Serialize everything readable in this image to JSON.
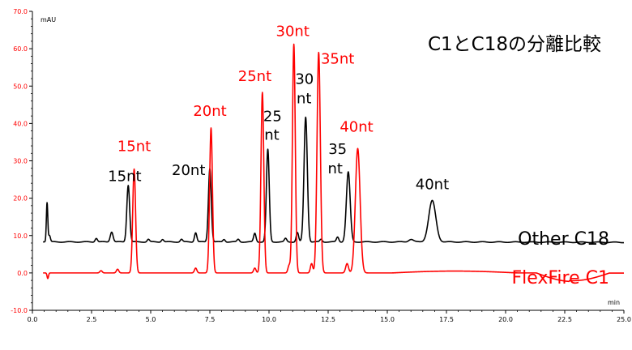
{
  "chart_data": {
    "type": "line",
    "title": "C1とC18の分離比較",
    "xlabel": "min",
    "ylabel": "mAU",
    "xlim": [
      0,
      25
    ],
    "ylim": [
      -10,
      70
    ],
    "grid": false,
    "xticks": [
      "0.0",
      "2.5",
      "5.0",
      "7.5",
      "10.0",
      "12.5",
      "15.0",
      "17.5",
      "20.0",
      "22.5",
      "25.0"
    ],
    "xtick_values": [
      0,
      2.5,
      5,
      7.5,
      10,
      12.5,
      15,
      17.5,
      20,
      22.5,
      25
    ],
    "yticks": [
      "-10.0",
      "0.0",
      "10.0",
      "20.0",
      "30.0",
      "40.0",
      "50.0",
      "60.0",
      "70.0"
    ],
    "ytick_values": [
      -10,
      0,
      10,
      20,
      30,
      40,
      50,
      60,
      70
    ],
    "series": [
      {
        "name": "Other C18",
        "color": "#000000",
        "baseline": 8.3,
        "peaks": [
          {
            "x": 0.62,
            "y": 18.8,
            "w": 0.03
          },
          {
            "x": 0.72,
            "y": 10.0,
            "w": 0.04
          },
          {
            "x": 2.7,
            "y": 9.3,
            "w": 0.05
          },
          {
            "x": 3.35,
            "y": 11.0,
            "w": 0.06
          },
          {
            "x": 4.05,
            "y": 23.5,
            "w": 0.06
          },
          {
            "x": 4.9,
            "y": 9.0,
            "w": 0.05
          },
          {
            "x": 5.5,
            "y": 9.0,
            "w": 0.05
          },
          {
            "x": 6.3,
            "y": 9.0,
            "w": 0.05
          },
          {
            "x": 6.9,
            "y": 10.8,
            "w": 0.05
          },
          {
            "x": 7.5,
            "y": 28.0,
            "w": 0.06
          },
          {
            "x": 8.1,
            "y": 9.0,
            "w": 0.05
          },
          {
            "x": 8.7,
            "y": 9.0,
            "w": 0.05
          },
          {
            "x": 9.4,
            "y": 10.6,
            "w": 0.05
          },
          {
            "x": 9.95,
            "y": 33.0,
            "w": 0.06
          },
          {
            "x": 10.7,
            "y": 9.2,
            "w": 0.05
          },
          {
            "x": 11.2,
            "y": 10.8,
            "w": 0.05
          },
          {
            "x": 11.55,
            "y": 41.7,
            "w": 0.07
          },
          {
            "x": 12.2,
            "y": 9.0,
            "w": 0.05
          },
          {
            "x": 12.9,
            "y": 9.6,
            "w": 0.05
          },
          {
            "x": 13.35,
            "y": 27.0,
            "w": 0.08
          },
          {
            "x": 16.0,
            "y": 9.0,
            "w": 0.1
          },
          {
            "x": 16.9,
            "y": 19.3,
            "w": 0.15
          }
        ]
      },
      {
        "name": "FlexFire C1",
        "color": "#ff0000",
        "baseline": 0,
        "peaks": [
          {
            "x": 0.65,
            "y": -1.5,
            "w": 0.03
          },
          {
            "x": 2.9,
            "y": 0.6,
            "w": 0.05
          },
          {
            "x": 3.6,
            "y": 1.0,
            "w": 0.05
          },
          {
            "x": 4.3,
            "y": 27.8,
            "w": 0.06
          },
          {
            "x": 6.9,
            "y": 1.3,
            "w": 0.05
          },
          {
            "x": 7.55,
            "y": 38.8,
            "w": 0.06
          },
          {
            "x": 9.4,
            "y": 1.3,
            "w": 0.05
          },
          {
            "x": 9.72,
            "y": 48.3,
            "w": 0.06
          },
          {
            "x": 10.85,
            "y": 2.0,
            "w": 0.05
          },
          {
            "x": 11.05,
            "y": 61.2,
            "w": 0.06
          },
          {
            "x": 11.8,
            "y": 2.5,
            "w": 0.05
          },
          {
            "x": 12.1,
            "y": 59.0,
            "w": 0.07
          },
          {
            "x": 13.3,
            "y": 2.5,
            "w": 0.06
          },
          {
            "x": 13.75,
            "y": 33.3,
            "w": 0.1
          }
        ]
      }
    ],
    "annotations": [
      {
        "text": "15nt",
        "x": 3.9,
        "y": 24.6,
        "color": "#000000"
      },
      {
        "text": "15nt",
        "x": 4.3,
        "y": 32.6,
        "color": "#ff0000"
      },
      {
        "text": "20nt",
        "x": 6.6,
        "y": 26.2,
        "color": "#000000"
      },
      {
        "text": "20nt",
        "x": 7.5,
        "y": 42.0,
        "color": "#ff0000"
      },
      {
        "text": "25nt",
        "x": 9.4,
        "y": 51.4,
        "color": "#ff0000"
      },
      {
        "text": "25",
        "x": 10.15,
        "y": 40.6,
        "color": "#000000"
      },
      {
        "text": "nt",
        "x": 10.12,
        "y": 35.6,
        "color": "#000000"
      },
      {
        "text": "30nt",
        "x": 11.0,
        "y": 63.4,
        "color": "#ff0000"
      },
      {
        "text": "30",
        "x": 11.5,
        "y": 50.6,
        "color": "#000000"
      },
      {
        "text": "nt",
        "x": 11.48,
        "y": 45.4,
        "color": "#000000"
      },
      {
        "text": "35nt",
        "x": 12.9,
        "y": 56.0,
        "color": "#ff0000"
      },
      {
        "text": "35",
        "x": 12.9,
        "y": 31.8,
        "color": "#000000"
      },
      {
        "text": "nt",
        "x": 12.8,
        "y": 26.6,
        "color": "#000000"
      },
      {
        "text": "40nt",
        "x": 13.7,
        "y": 37.8,
        "color": "#ff0000"
      },
      {
        "text": "40nt",
        "x": 16.9,
        "y": 22.4,
        "color": "#000000"
      }
    ],
    "legend": [
      {
        "label": "Other C18",
        "color": "#000000"
      },
      {
        "label": "FlexFire C1",
        "color": "#ff0000"
      }
    ]
  }
}
